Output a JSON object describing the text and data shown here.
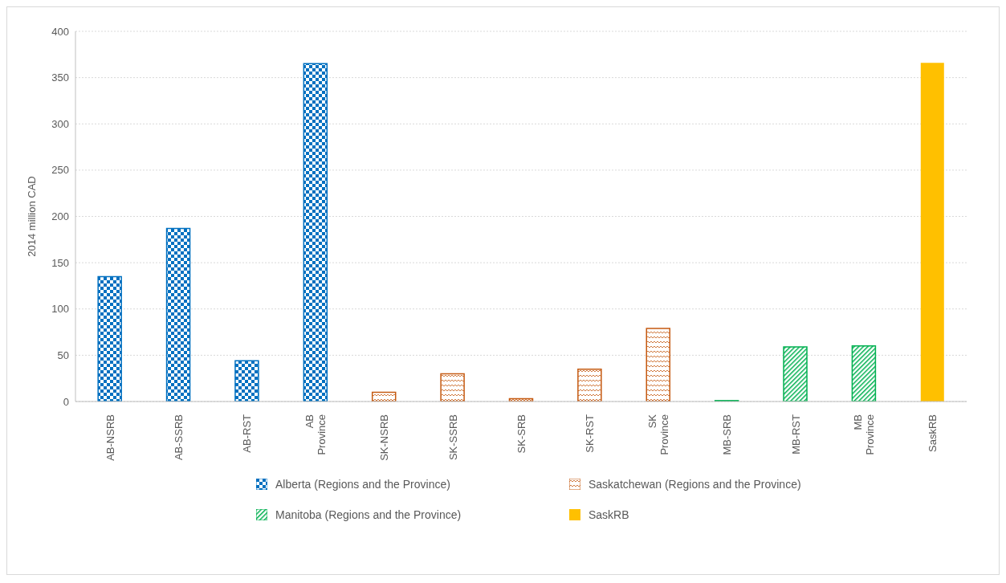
{
  "chart_data": {
    "type": "bar",
    "ylabel": "2014 million CAD",
    "categories": [
      "AB-NSRB",
      "AB-SSRB",
      "AB-RST",
      "AB Province",
      "SK-NSRB",
      "SK-SSRB",
      "SK-SRB",
      "SK-RST",
      "SK Province",
      "MB-SRB",
      "MB-RST",
      "MB Province",
      "SaskRB"
    ],
    "series": [
      {
        "name": "Alberta (Regions and the Province)",
        "color": "#0070c0",
        "values": [
          135,
          187,
          44,
          365,
          null,
          null,
          null,
          null,
          null,
          null,
          null,
          null,
          null
        ]
      },
      {
        "name": "Saskatchewan (Regions and the Province)",
        "color": "#c55a11",
        "values": [
          null,
          null,
          null,
          null,
          10,
          30,
          3,
          35,
          79,
          null,
          null,
          null,
          null
        ]
      },
      {
        "name": "Manitoba (Regions and the Province)",
        "color": "#00b050",
        "values": [
          null,
          null,
          null,
          null,
          null,
          null,
          null,
          null,
          null,
          1,
          59,
          60,
          null
        ]
      },
      {
        "name": "SaskRB",
        "color": "#ffc000",
        "values": [
          null,
          null,
          null,
          null,
          null,
          null,
          null,
          null,
          null,
          null,
          null,
          null,
          366
        ]
      }
    ],
    "stacked": true,
    "ylim": [
      0,
      400
    ],
    "yticks": [
      0,
      50,
      100,
      150,
      200,
      250,
      300,
      350,
      400
    ],
    "grid": "y",
    "legend": "bottom"
  }
}
